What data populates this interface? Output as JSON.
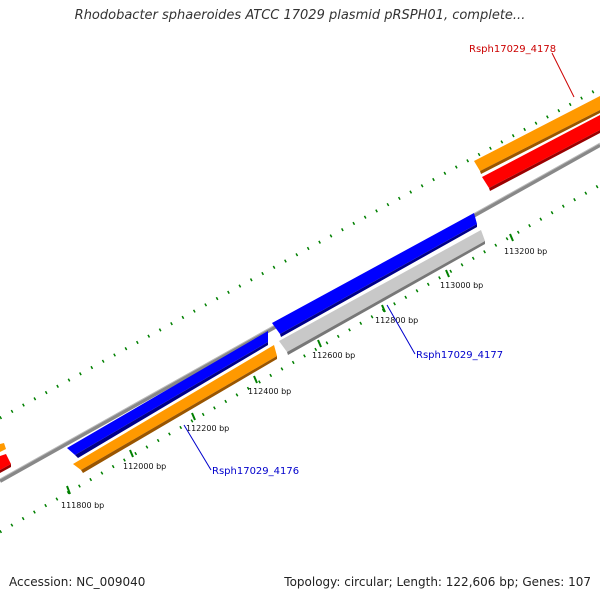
{
  "title": "Rhodobacter sphaeroides ATCC 17029 plasmid pRSPH01, complete...",
  "accession": "Accession: NC_009040",
  "topology": "Topology: circular; Length: 122,606 bp; Genes: 107",
  "colors": {
    "orange": "#ff9900",
    "red": "#ff0000",
    "blue": "#0000ff",
    "grey": "#c8c8c8",
    "backbone": "#888888",
    "tick": "#008000",
    "label_red": "#cc0000",
    "label_blue": "#0000cc"
  },
  "ticks": [
    {
      "label": "111800 bp"
    },
    {
      "label": "112000 bp"
    },
    {
      "label": "112200 bp"
    },
    {
      "label": "112400 bp"
    },
    {
      "label": "112600 bp"
    },
    {
      "label": "112800 bp"
    },
    {
      "label": "113000 bp"
    },
    {
      "label": "113200 bp"
    }
  ],
  "genes": [
    {
      "name": "Rsph17029_4176",
      "color": "blue"
    },
    {
      "name": "Rsph17029_4177",
      "color": "blue"
    },
    {
      "name": "Rsph17029_4178",
      "color": "red"
    }
  ]
}
